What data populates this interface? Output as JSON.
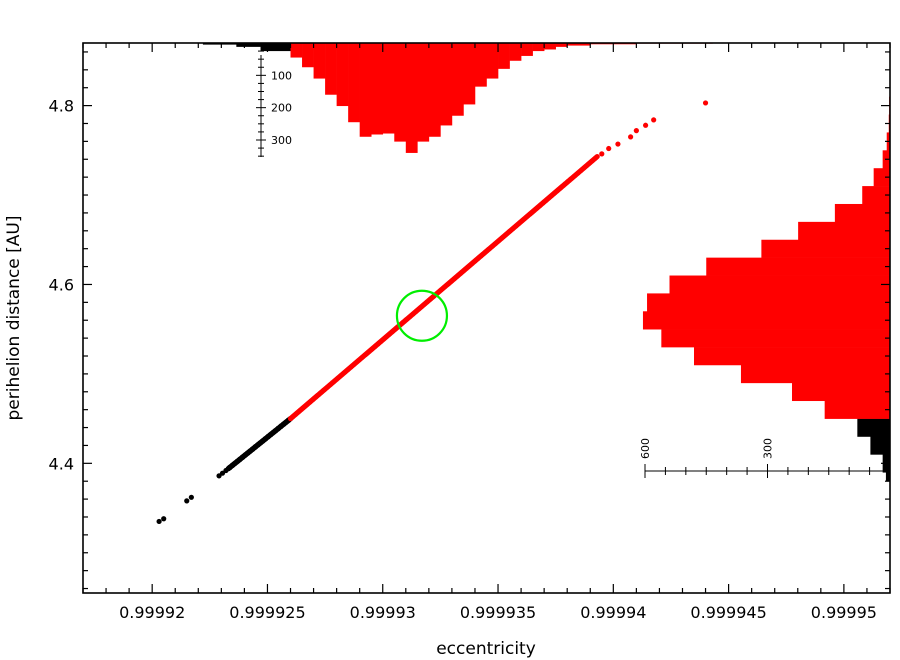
{
  "chart_data": {
    "type": "scatter",
    "xlabel": "eccentricity",
    "ylabel": "perihelion distance [AU]",
    "xlim": [
      0.999917,
      0.999952
    ],
    "ylim": [
      4.255,
      4.87
    ],
    "x_ticks": [
      {
        "value": 0.99992,
        "label": "0.99992"
      },
      {
        "value": 0.999925,
        "label": "0.999925"
      },
      {
        "value": 0.99993,
        "label": "0.99993"
      },
      {
        "value": 0.999935,
        "label": "0.999935"
      },
      {
        "value": 0.99994,
        "label": "0.99994"
      },
      {
        "value": 0.999945,
        "label": "0.999945"
      },
      {
        "value": 0.99995,
        "label": "0.99995"
      }
    ],
    "y_ticks": [
      {
        "value": 4.4,
        "label": "4.4"
      },
      {
        "value": 4.6,
        "label": "4.6"
      },
      {
        "value": 4.8,
        "label": "4.8"
      }
    ],
    "grid": false,
    "series": [
      {
        "color": "#000000",
        "points": [
          [
            0.9999203,
            4.335
          ],
          [
            0.9999205,
            4.338
          ],
          [
            0.9999215,
            4.358
          ],
          [
            0.9999217,
            4.362
          ],
          [
            0.9999229,
            4.386
          ],
          [
            0.99992305,
            4.389
          ],
          [
            0.9999232,
            4.392
          ]
        ],
        "segment": {
          "x": [
            0.9999233,
            0.999926
          ],
          "y": [
            4.394,
            4.45
          ]
        }
      },
      {
        "color": "#ff0000",
        "segment": {
          "x": [
            0.999926,
            0.9999393
          ],
          "y": [
            4.45,
            4.743
          ]
        },
        "points": [
          [
            0.9999395,
            4.746
          ],
          [
            0.9999398,
            4.752
          ],
          [
            0.9999402,
            4.757
          ],
          [
            0.99994075,
            4.765
          ],
          [
            0.999941,
            4.772
          ],
          [
            0.9999414,
            4.778
          ],
          [
            0.99994175,
            4.784
          ],
          [
            0.999944,
            4.803
          ]
        ]
      }
    ],
    "highlight": {
      "x": 0.9999317,
      "y": 4.565,
      "color": "#00ee00"
    },
    "x_histogram": {
      "axis_labels": [
        "100",
        "200",
        "300"
      ],
      "bins": [
        {
          "x0": 0.99992175,
          "x1": 0.9999222,
          "count": 1,
          "color": "#000000"
        },
        {
          "x0": 0.9999222,
          "x1": 0.99992365,
          "count": 5,
          "color": "#000000"
        },
        {
          "x0": 0.99992365,
          "x1": 0.9999247,
          "count": 12,
          "color": "#000000"
        },
        {
          "x0": 0.9999247,
          "x1": 0.999926,
          "count": 25,
          "color": "#000000"
        },
        {
          "x0": 0.999926,
          "x1": 0.9999265,
          "count": 45,
          "color": "#ff0000"
        },
        {
          "x0": 0.9999265,
          "x1": 0.999927,
          "count": 75,
          "color": "#ff0000"
        },
        {
          "x0": 0.999927,
          "x1": 0.9999275,
          "count": 110,
          "color": "#ff0000"
        },
        {
          "x0": 0.9999275,
          "x1": 0.999928,
          "count": 160,
          "color": "#ff0000"
        },
        {
          "x0": 0.999928,
          "x1": 0.9999285,
          "count": 195,
          "color": "#ff0000"
        },
        {
          "x0": 0.9999285,
          "x1": 0.999929,
          "count": 245,
          "color": "#ff0000"
        },
        {
          "x0": 0.999929,
          "x1": 0.9999295,
          "count": 290,
          "color": "#ff0000"
        },
        {
          "x0": 0.9999295,
          "x1": 0.99993,
          "count": 283,
          "color": "#ff0000"
        },
        {
          "x0": 0.99993,
          "x1": 0.9999305,
          "count": 280,
          "color": "#ff0000"
        },
        {
          "x0": 0.9999305,
          "x1": 0.999931,
          "count": 305,
          "color": "#ff0000"
        },
        {
          "x0": 0.999931,
          "x1": 0.9999315,
          "count": 340,
          "color": "#ff0000"
        },
        {
          "x0": 0.9999315,
          "x1": 0.999932,
          "count": 305,
          "color": "#ff0000"
        },
        {
          "x0": 0.999932,
          "x1": 0.9999325,
          "count": 290,
          "color": "#ff0000"
        },
        {
          "x0": 0.9999325,
          "x1": 0.999933,
          "count": 255,
          "color": "#ff0000"
        },
        {
          "x0": 0.999933,
          "x1": 0.9999335,
          "count": 225,
          "color": "#ff0000"
        },
        {
          "x0": 0.9999335,
          "x1": 0.999934,
          "count": 190,
          "color": "#ff0000"
        },
        {
          "x0": 0.999934,
          "x1": 0.9999345,
          "count": 135,
          "color": "#ff0000"
        },
        {
          "x0": 0.9999345,
          "x1": 0.999935,
          "count": 110,
          "color": "#ff0000"
        },
        {
          "x0": 0.999935,
          "x1": 0.9999355,
          "count": 80,
          "color": "#ff0000"
        },
        {
          "x0": 0.9999355,
          "x1": 0.999936,
          "count": 55,
          "color": "#ff0000"
        },
        {
          "x0": 0.999936,
          "x1": 0.9999365,
          "count": 40,
          "color": "#ff0000"
        },
        {
          "x0": 0.9999365,
          "x1": 0.999937,
          "count": 25,
          "color": "#ff0000"
        },
        {
          "x0": 0.999937,
          "x1": 0.9999375,
          "count": 20,
          "color": "#ff0000"
        },
        {
          "x0": 0.9999375,
          "x1": 0.999938,
          "count": 12,
          "color": "#ff0000"
        },
        {
          "x0": 0.999938,
          "x1": 0.999939,
          "count": 8,
          "color": "#ff0000"
        },
        {
          "x0": 0.999939,
          "x1": 0.999941,
          "count": 4,
          "color": "#ff0000"
        },
        {
          "x0": 0.999941,
          "x1": 0.9999443,
          "count": 2,
          "color": "#ff0000"
        }
      ]
    },
    "y_histogram": {
      "axis_labels": [
        "600",
        "300"
      ],
      "bins": [
        {
          "y0": 4.38,
          "y1": 4.39,
          "count": 10,
          "color": "#000000"
        },
        {
          "y0": 4.39,
          "y1": 4.41,
          "count": 18,
          "color": "#000000"
        },
        {
          "y0": 4.41,
          "y1": 4.43,
          "count": 48,
          "color": "#000000"
        },
        {
          "y0": 4.43,
          "y1": 4.45,
          "count": 80,
          "color": "#000000"
        },
        {
          "y0": 4.45,
          "y1": 4.47,
          "count": 160,
          "color": "#ff0000"
        },
        {
          "y0": 4.47,
          "y1": 4.49,
          "count": 240,
          "color": "#ff0000"
        },
        {
          "y0": 4.49,
          "y1": 4.51,
          "count": 365,
          "color": "#ff0000"
        },
        {
          "y0": 4.51,
          "y1": 4.53,
          "count": 480,
          "color": "#ff0000"
        },
        {
          "y0": 4.53,
          "y1": 4.55,
          "count": 560,
          "color": "#ff0000"
        },
        {
          "y0": 4.55,
          "y1": 4.57,
          "count": 605,
          "color": "#ff0000"
        },
        {
          "y0": 4.57,
          "y1": 4.59,
          "count": 595,
          "color": "#ff0000"
        },
        {
          "y0": 4.59,
          "y1": 4.61,
          "count": 540,
          "color": "#ff0000"
        },
        {
          "y0": 4.61,
          "y1": 4.63,
          "count": 450,
          "color": "#ff0000"
        },
        {
          "y0": 4.63,
          "y1": 4.65,
          "count": 315,
          "color": "#ff0000"
        },
        {
          "y0": 4.65,
          "y1": 4.67,
          "count": 225,
          "color": "#ff0000"
        },
        {
          "y0": 4.67,
          "y1": 4.69,
          "count": 135,
          "color": "#ff0000"
        },
        {
          "y0": 4.69,
          "y1": 4.71,
          "count": 68,
          "color": "#ff0000"
        },
        {
          "y0": 4.71,
          "y1": 4.73,
          "count": 40,
          "color": "#ff0000"
        },
        {
          "y0": 4.73,
          "y1": 4.75,
          "count": 18,
          "color": "#ff0000"
        },
        {
          "y0": 4.75,
          "y1": 4.77,
          "count": 8,
          "color": "#ff0000"
        },
        {
          "y0": 4.77,
          "y1": 4.79,
          "count": 3,
          "color": "#ff0000"
        },
        {
          "y0": 4.79,
          "y1": 4.81,
          "count": 2,
          "color": "#ff0000"
        }
      ]
    }
  }
}
